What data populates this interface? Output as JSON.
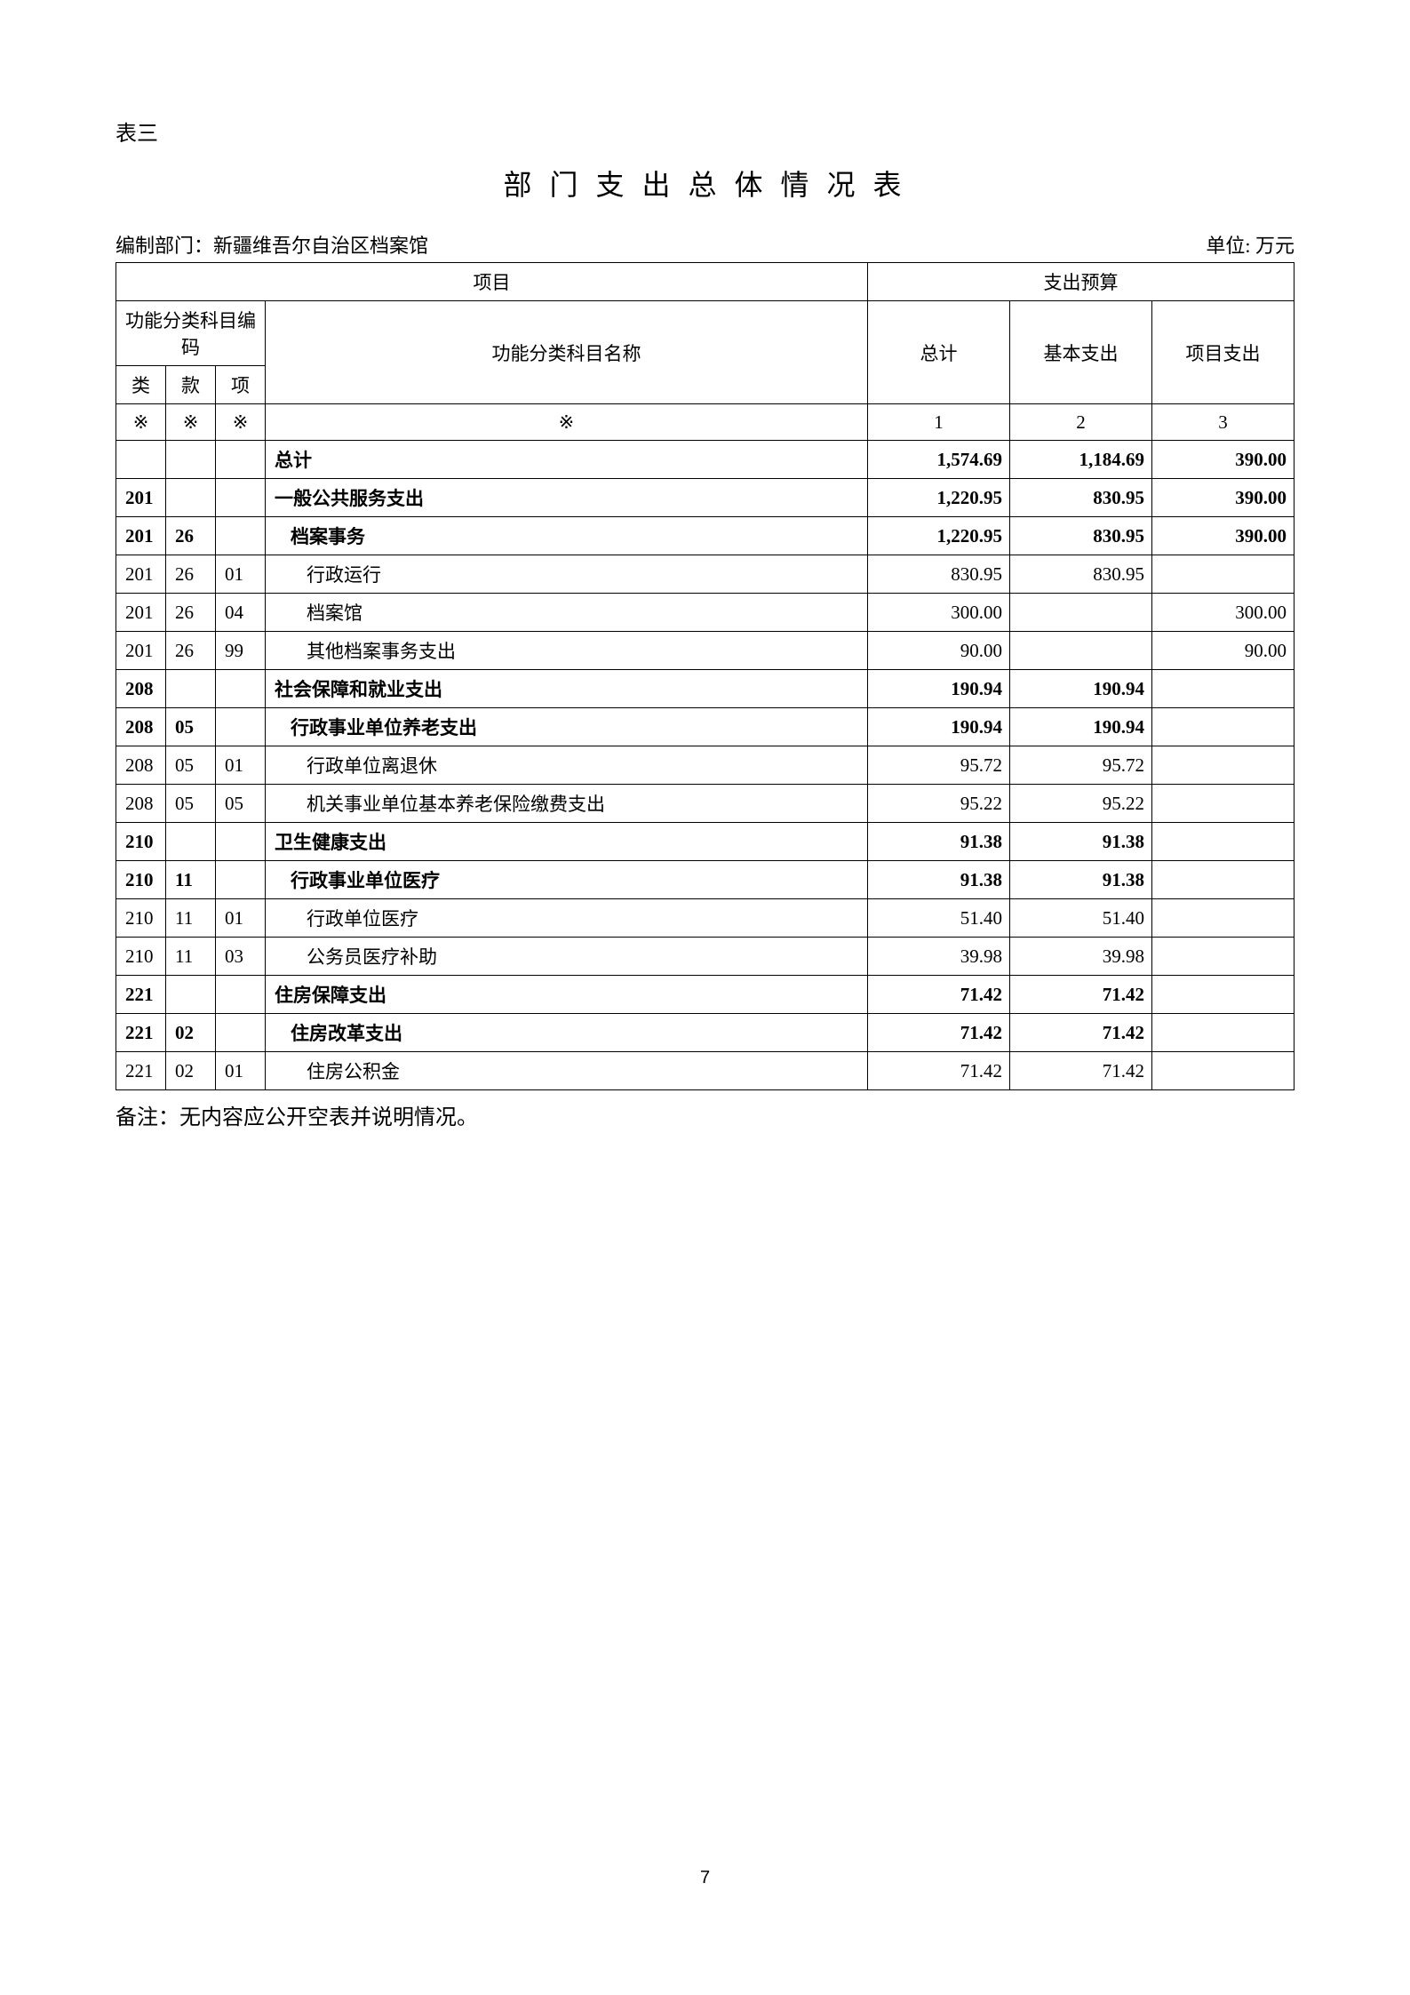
{
  "table_label": "表三",
  "title": "部 门 支 出 总 体 情 况 表",
  "department_label": "编制部门：新疆维吾尔自治区档案馆",
  "unit_label": "单位: 万元",
  "headers": {
    "project": "项目",
    "budget": "支出预算",
    "code_group": "功能分类科目编码",
    "name": "功能分类科目名称",
    "lei": "类",
    "kuan": "款",
    "xiang": "项",
    "total": "总计",
    "basic": "基本支出",
    "proj": "项目支出",
    "mark": "※",
    "c1": "1",
    "c2": "2",
    "c3": "3"
  },
  "rows": [
    {
      "lei": "",
      "kuan": "",
      "xiang": "",
      "name": "总计",
      "total": "1,574.69",
      "basic": "1,184.69",
      "proj": "390.00",
      "bold": true,
      "indent": 0
    },
    {
      "lei": "201",
      "kuan": "",
      "xiang": "",
      "name": "一般公共服务支出",
      "total": "1,220.95",
      "basic": "830.95",
      "proj": "390.00",
      "bold": true,
      "indent": 0
    },
    {
      "lei": "201",
      "kuan": "26",
      "xiang": "",
      "name": "档案事务",
      "total": "1,220.95",
      "basic": "830.95",
      "proj": "390.00",
      "bold": true,
      "indent": 1
    },
    {
      "lei": "201",
      "kuan": "26",
      "xiang": "01",
      "name": "行政运行",
      "total": "830.95",
      "basic": "830.95",
      "proj": "",
      "bold": false,
      "indent": 2
    },
    {
      "lei": "201",
      "kuan": "26",
      "xiang": "04",
      "name": "档案馆",
      "total": "300.00",
      "basic": "",
      "proj": "300.00",
      "bold": false,
      "indent": 2
    },
    {
      "lei": "201",
      "kuan": "26",
      "xiang": "99",
      "name": "其他档案事务支出",
      "total": "90.00",
      "basic": "",
      "proj": "90.00",
      "bold": false,
      "indent": 2
    },
    {
      "lei": "208",
      "kuan": "",
      "xiang": "",
      "name": "社会保障和就业支出",
      "total": "190.94",
      "basic": "190.94",
      "proj": "",
      "bold": true,
      "indent": 0
    },
    {
      "lei": "208",
      "kuan": "05",
      "xiang": "",
      "name": "行政事业单位养老支出",
      "total": "190.94",
      "basic": "190.94",
      "proj": "",
      "bold": true,
      "indent": 1
    },
    {
      "lei": "208",
      "kuan": "05",
      "xiang": "01",
      "name": "行政单位离退休",
      "total": "95.72",
      "basic": "95.72",
      "proj": "",
      "bold": false,
      "indent": 2
    },
    {
      "lei": "208",
      "kuan": "05",
      "xiang": "05",
      "name": "机关事业单位基本养老保险缴费支出",
      "total": "95.22",
      "basic": "95.22",
      "proj": "",
      "bold": false,
      "indent": 2
    },
    {
      "lei": "210",
      "kuan": "",
      "xiang": "",
      "name": "卫生健康支出",
      "total": "91.38",
      "basic": "91.38",
      "proj": "",
      "bold": true,
      "indent": 0
    },
    {
      "lei": "210",
      "kuan": "11",
      "xiang": "",
      "name": "行政事业单位医疗",
      "total": "91.38",
      "basic": "91.38",
      "proj": "",
      "bold": true,
      "indent": 1
    },
    {
      "lei": "210",
      "kuan": "11",
      "xiang": "01",
      "name": "行政单位医疗",
      "total": "51.40",
      "basic": "51.40",
      "proj": "",
      "bold": false,
      "indent": 2
    },
    {
      "lei": "210",
      "kuan": "11",
      "xiang": "03",
      "name": "公务员医疗补助",
      "total": "39.98",
      "basic": "39.98",
      "proj": "",
      "bold": false,
      "indent": 2
    },
    {
      "lei": "221",
      "kuan": "",
      "xiang": "",
      "name": "住房保障支出",
      "total": "71.42",
      "basic": "71.42",
      "proj": "",
      "bold": true,
      "indent": 0
    },
    {
      "lei": "221",
      "kuan": "02",
      "xiang": "",
      "name": "住房改革支出",
      "total": "71.42",
      "basic": "71.42",
      "proj": "",
      "bold": true,
      "indent": 1
    },
    {
      "lei": "221",
      "kuan": "02",
      "xiang": "01",
      "name": "住房公积金",
      "total": "71.42",
      "basic": "71.42",
      "proj": "",
      "bold": false,
      "indent": 2
    }
  ],
  "note": "备注：无内容应公开空表并说明情况。",
  "page_number": "7",
  "style": {
    "background": "#ffffff",
    "text_color": "#000000",
    "border_color": "#000000",
    "title_fontsize": 32,
    "body_fontsize": 21,
    "label_fontsize": 24
  }
}
